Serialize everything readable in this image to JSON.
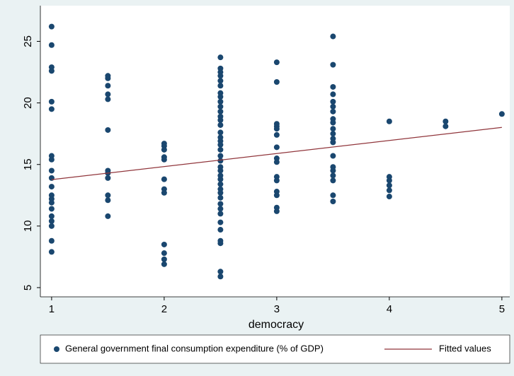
{
  "chart_data": {
    "type": "scatter",
    "x_label": "democracy",
    "xlim": [
      0.9,
      5.07
    ],
    "xticks": [
      1,
      2,
      3,
      4,
      5
    ],
    "ylim": [
      4.25,
      27.9
    ],
    "yticks": [
      5,
      10,
      15,
      20,
      25
    ],
    "grid": false,
    "series": [
      {
        "name": "General government final consumption expenditure (% of GDP)",
        "color": "#1a476f",
        "mark": "scatter",
        "x": [
          1,
          1,
          1,
          1,
          1,
          1,
          1,
          1,
          1,
          1,
          1,
          1,
          1,
          1,
          1,
          1,
          1,
          1,
          1,
          1,
          1.5,
          1.5,
          1.5,
          1.5,
          1.5,
          1.5,
          1.5,
          1.5,
          1.5,
          1.5,
          1.5,
          1.5,
          2,
          2,
          2,
          2,
          2,
          2,
          2,
          2,
          2,
          2,
          2,
          2,
          2.5,
          2.5,
          2.5,
          2.5,
          2.5,
          2.5,
          2.5,
          2.5,
          2.5,
          2.5,
          2.5,
          2.5,
          2.5,
          2.5,
          2.5,
          2.5,
          2.5,
          2.5,
          2.5,
          2.5,
          2.5,
          2.5,
          2.5,
          2.5,
          2.5,
          2.5,
          2.5,
          2.5,
          2.5,
          2.5,
          2.5,
          2.5,
          2.5,
          2.5,
          2.5,
          2.5,
          2.5,
          2.5,
          3,
          3,
          3,
          3,
          3,
          3,
          3,
          3,
          3,
          3,
          3,
          3,
          3,
          3,
          3,
          3.5,
          3.5,
          3.5,
          3.5,
          3.5,
          3.5,
          3.5,
          3.5,
          3.5,
          3.5,
          3.5,
          3.5,
          3.5,
          3.5,
          3.5,
          3.5,
          3.5,
          3.5,
          3.5,
          3.5,
          4,
          4,
          4,
          4,
          4,
          4,
          4.5,
          4.5,
          5
        ],
        "values": [
          26.2,
          24.7,
          22.9,
          22.6,
          20.1,
          19.5,
          15.7,
          15.4,
          14.5,
          13.9,
          13.2,
          12.5,
          12.2,
          11.9,
          11.4,
          10.8,
          10.4,
          10.0,
          8.8,
          7.9,
          22.2,
          22.0,
          21.4,
          20.7,
          20.3,
          17.8,
          14.5,
          14.3,
          13.9,
          12.5,
          12.1,
          10.8,
          16.7,
          16.5,
          16.2,
          15.6,
          15.4,
          13.8,
          13.0,
          12.7,
          8.5,
          7.8,
          7.3,
          6.9,
          23.7,
          22.8,
          22.5,
          22.2,
          21.8,
          21.4,
          20.8,
          20.5,
          20.1,
          19.7,
          19.3,
          18.9,
          18.6,
          18.2,
          17.6,
          17.2,
          16.9,
          16.6,
          16.2,
          15.7,
          15.3,
          14.8,
          14.5,
          14.1,
          13.8,
          13.4,
          13.0,
          12.7,
          12.3,
          11.8,
          11.4,
          11.0,
          10.3,
          9.7,
          8.8,
          8.6,
          6.3,
          5.9,
          23.3,
          21.7,
          18.3,
          18.1,
          17.9,
          17.4,
          16.4,
          15.5,
          15.2,
          14.0,
          13.7,
          12.8,
          12.5,
          11.5,
          11.2,
          25.4,
          23.1,
          21.3,
          20.7,
          20.1,
          19.7,
          19.3,
          18.7,
          18.4,
          17.9,
          17.5,
          17.1,
          16.8,
          15.7,
          14.8,
          14.5,
          14.1,
          13.7,
          12.5,
          12.0,
          18.5,
          14.0,
          13.7,
          13.3,
          12.9,
          12.4,
          18.5,
          18.1,
          19.1
        ]
      },
      {
        "name": "Fitted values",
        "color": "#90353b",
        "mark": "line",
        "x": [
          1,
          5
        ],
        "values": [
          13.77,
          18.01
        ]
      }
    ]
  }
}
